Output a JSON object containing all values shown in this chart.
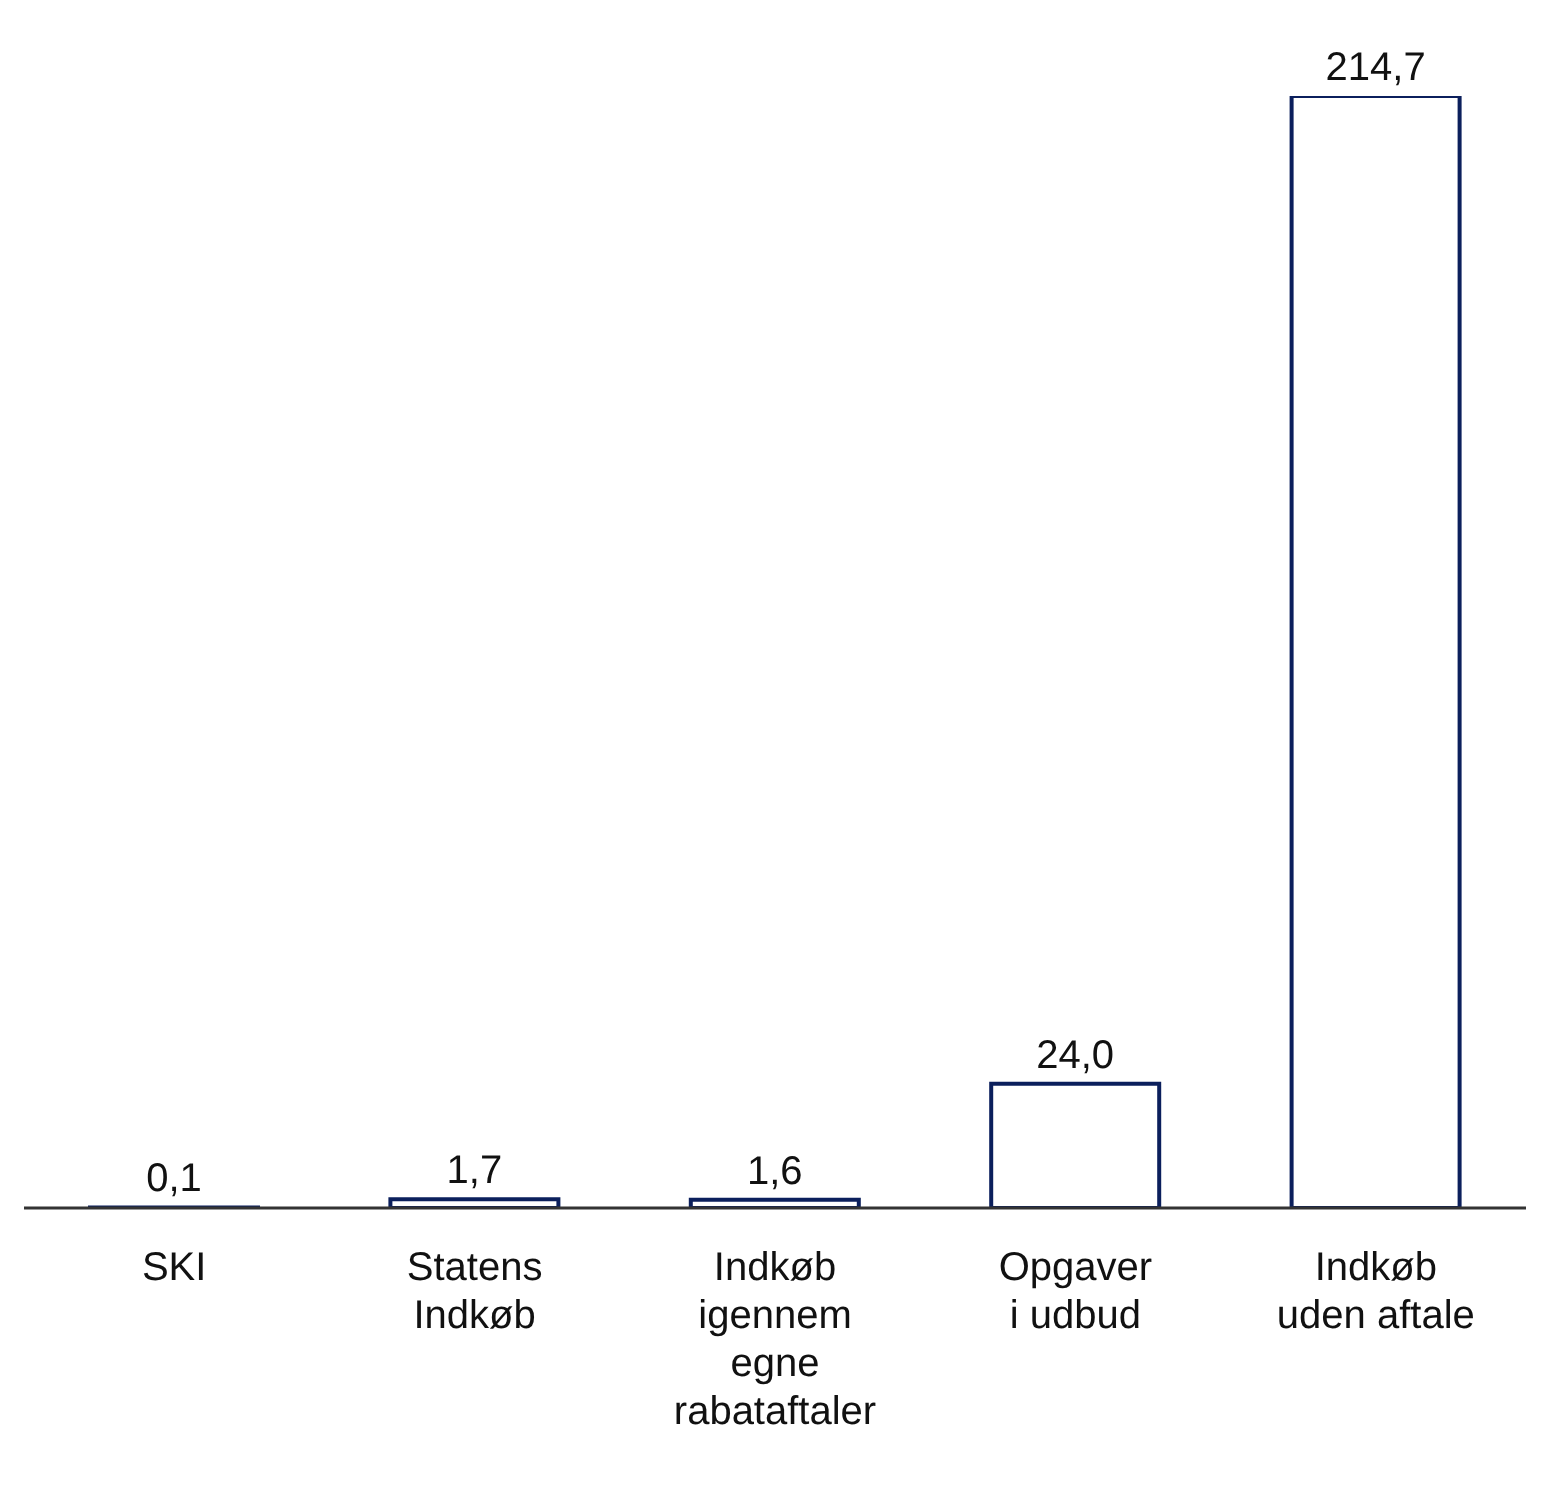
{
  "chart_data": {
    "type": "bar",
    "categories": [
      "SKI",
      "Statens Indkøb",
      "Indkøb igennem egne rabataftaler",
      "Opgaver i udbud",
      "Indkøb uden aftale"
    ],
    "values": [
      0.1,
      1.7,
      1.6,
      24.0,
      214.7
    ],
    "value_labels": [
      "0,1",
      "1,7",
      "1,6",
      "24,0",
      "214,7"
    ],
    "color": "#ffffff",
    "grid": false,
    "legend": false
  }
}
